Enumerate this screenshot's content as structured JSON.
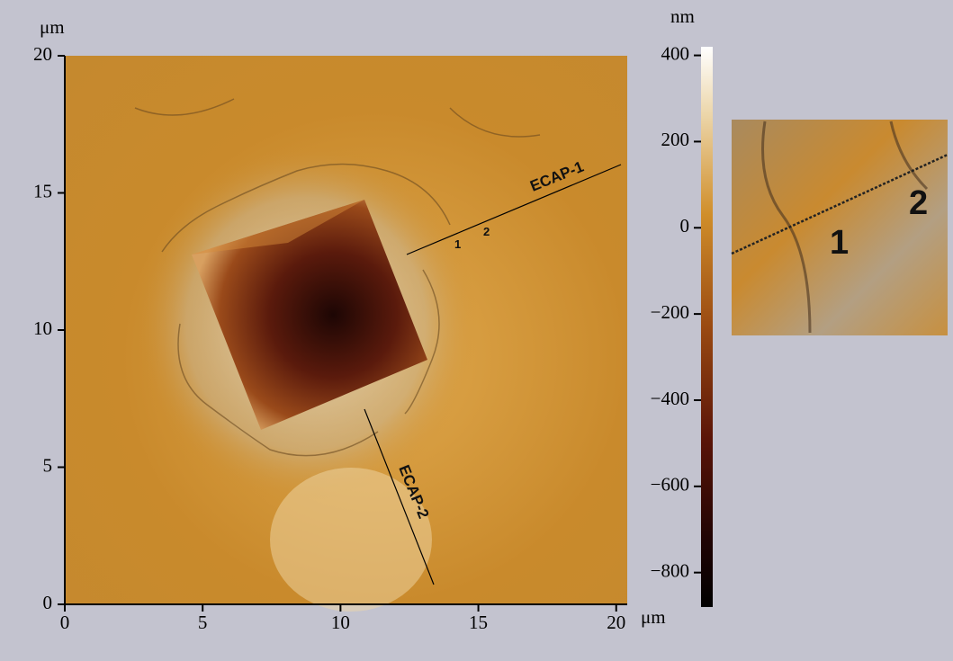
{
  "axes": {
    "y_unit": "μm",
    "x_unit": "μm",
    "xlim": [
      0,
      20.4
    ],
    "ylim": [
      0,
      20
    ],
    "xticks": [
      0,
      5,
      10,
      15,
      20
    ],
    "yticks": [
      0,
      5,
      10,
      15,
      20
    ]
  },
  "colorbar": {
    "unit": "nm",
    "lim": [
      -880,
      420
    ],
    "ticks": [
      400,
      200,
      0,
      {
        "value": -200,
        "label": "−200"
      },
      {
        "value": -400,
        "label": "−400"
      },
      {
        "value": -600,
        "label": "−600"
      },
      {
        "value": -800,
        "label": "−800"
      }
    ]
  },
  "annotations": {
    "line_1": "ECAP-1",
    "line_2": "ECAP-2",
    "point_1": "1",
    "point_2": "2"
  },
  "inset": {
    "label_1": "1",
    "label_2": "2"
  }
}
